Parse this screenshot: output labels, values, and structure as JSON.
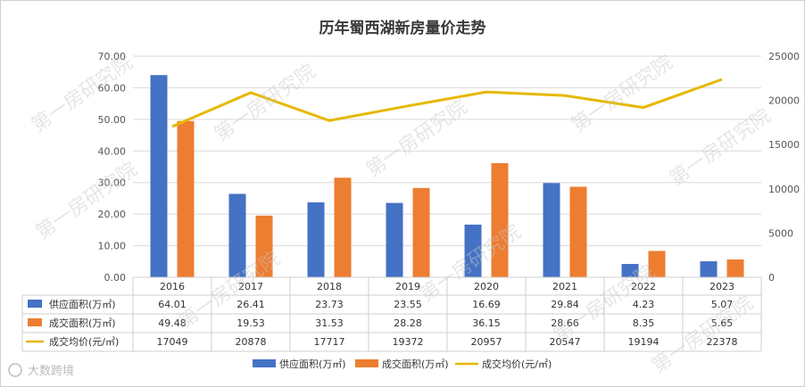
{
  "chart_data": {
    "type": "bar",
    "title": "历年蜀西湖新房量价走势",
    "categories": [
      "2016",
      "2017",
      "2018",
      "2019",
      "2020",
      "2021",
      "2022",
      "2023"
    ],
    "series": [
      {
        "name": "供应面积(万㎡)",
        "type": "bar",
        "axis": "left",
        "color": "#4472C4",
        "values": [
          64.01,
          26.41,
          23.73,
          23.55,
          16.69,
          29.84,
          4.23,
          5.07
        ]
      },
      {
        "name": "成交面积(万㎡)",
        "type": "bar",
        "axis": "left",
        "color": "#ED7D31",
        "values": [
          49.48,
          19.53,
          31.53,
          28.28,
          36.15,
          28.66,
          8.35,
          5.65
        ]
      },
      {
        "name": "成交均价(元/㎡)",
        "type": "line",
        "axis": "right",
        "color": "#E6B800",
        "values": [
          17049,
          20878,
          17717,
          19372,
          20957,
          20547,
          19194,
          22378
        ]
      }
    ],
    "y_left": {
      "min": 0,
      "max": 70,
      "step": 10,
      "ticks": [
        "0.00",
        "10.00",
        "20.00",
        "30.00",
        "40.00",
        "50.00",
        "60.00",
        "70.00"
      ]
    },
    "y_right": {
      "min": 0,
      "max": 25000,
      "step": 5000,
      "ticks": [
        "0",
        "5000",
        "10000",
        "15000",
        "20000",
        "25000"
      ]
    },
    "data_table": {
      "rows": [
        {
          "label": "供应面积(万㎡)",
          "cells": [
            "64.01",
            "26.41",
            "23.73",
            "23.55",
            "16.69",
            "29.84",
            "4.23",
            "5.07"
          ]
        },
        {
          "label": "成交面积(万㎡)",
          "cells": [
            "49.48",
            "19.53",
            "31.53",
            "28.28",
            "36.15",
            "28.66",
            "8.35",
            "5.65"
          ]
        },
        {
          "label": "成交均价(元/㎡)",
          "cells": [
            "17049",
            "20878",
            "17717",
            "19372",
            "20957",
            "20547",
            "19194",
            "22378"
          ]
        }
      ]
    },
    "legend_position": "bottom",
    "grid": true
  },
  "watermark": "第一房研究院",
  "brand": "大数跨境"
}
